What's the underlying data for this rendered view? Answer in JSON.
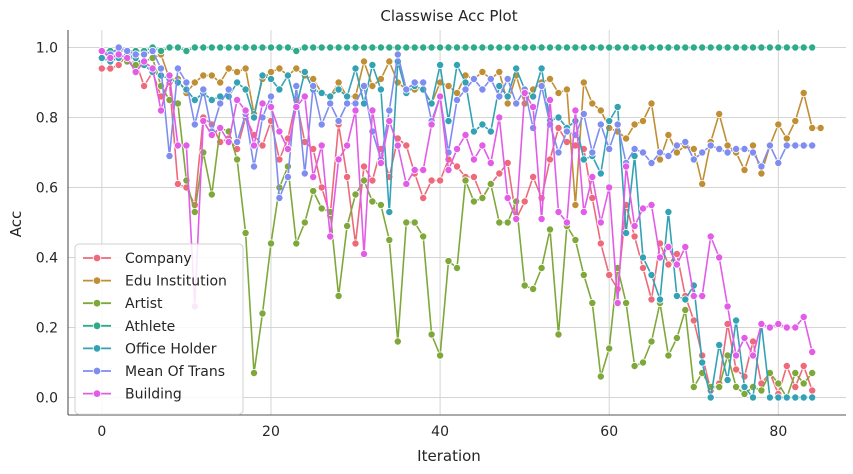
{
  "chart_data": {
    "type": "line",
    "title": "Classwise Acc Plot",
    "xlabel": "Iteration",
    "ylabel": "Acc",
    "xlim": [
      -4,
      88
    ],
    "ylim": [
      -0.05,
      1.05
    ],
    "x_ticks": [
      0,
      20,
      40,
      60,
      80
    ],
    "y_ticks": [
      0.0,
      0.2,
      0.4,
      0.6,
      0.8,
      1.0
    ],
    "x_tick_labels": [
      "0",
      "20",
      "40",
      "60",
      "80"
    ],
    "y_tick_labels": [
      "0.0",
      "0.2",
      "0.4",
      "0.6",
      "0.8",
      "1.0"
    ],
    "grid": true,
    "legend_position": "lower-left",
    "x_start": 0,
    "series": [
      {
        "name": "Company",
        "color": "#ee6a7a",
        "values": [
          0.94,
          0.94,
          0.95,
          0.98,
          0.96,
          0.89,
          0.93,
          0.86,
          0.9,
          0.61,
          0.6,
          0.55,
          0.8,
          0.78,
          0.73,
          0.74,
          0.71,
          0.8,
          0.75,
          0.72,
          0.79,
          0.68,
          0.74,
          0.85,
          0.73,
          0.71,
          0.6,
          0.52,
          0.78,
          0.63,
          0.44,
          0.66,
          0.62,
          0.71,
          0.63,
          0.74,
          0.72,
          0.64,
          0.57,
          0.62,
          0.62,
          0.68,
          0.66,
          0.63,
          0.63,
          0.57,
          0.61,
          0.64,
          0.67,
          0.51,
          0.56,
          0.63,
          0.57,
          0.68,
          0.77,
          0.73,
          0.72,
          0.71,
          0.57,
          0.44,
          0.35,
          0.31,
          0.55,
          0.46,
          0.37,
          0.28,
          0.44,
          0.38,
          0.41,
          0.29,
          0.22,
          0.12,
          0.02,
          0.04,
          0.21,
          0.08,
          0.06,
          0.16,
          0.04,
          0.07,
          0.01,
          0.09,
          0.03,
          0.09,
          0.02
        ]
      },
      {
        "name": "Edu Institution",
        "color": "#c08e34",
        "values": [
          0.97,
          0.97,
          0.97,
          0.96,
          0.94,
          0.96,
          0.97,
          0.98,
          0.91,
          0.91,
          0.87,
          0.9,
          0.92,
          0.92,
          0.9,
          0.94,
          0.93,
          0.94,
          0.81,
          0.91,
          0.93,
          0.94,
          0.92,
          0.94,
          0.92,
          0.91,
          0.87,
          0.86,
          0.9,
          0.86,
          0.86,
          0.96,
          0.89,
          0.91,
          0.96,
          0.9,
          0.88,
          0.88,
          0.88,
          0.84,
          0.9,
          0.89,
          0.87,
          0.92,
          0.91,
          0.93,
          0.91,
          0.93,
          0.84,
          0.92,
          0.84,
          0.88,
          0.9,
          0.91,
          0.87,
          0.88,
          0.55,
          0.9,
          0.84,
          0.82,
          0.77,
          0.76,
          0.74,
          0.78,
          0.79,
          0.84,
          0.68,
          0.75,
          0.7,
          0.72,
          0.71,
          0.61,
          0.73,
          0.81,
          0.72,
          0.7,
          0.65,
          0.72,
          0.64,
          0.72,
          0.78,
          0.74,
          0.79,
          0.87,
          0.77,
          0.77
        ]
      },
      {
        "name": "Artist",
        "color": "#7fa83a",
        "values": [
          0.99,
          0.98,
          0.97,
          0.96,
          0.95,
          0.96,
          0.97,
          0.89,
          0.85,
          0.84,
          0.62,
          0.53,
          0.7,
          0.58,
          0.77,
          0.76,
          0.68,
          0.47,
          0.07,
          0.24,
          0.44,
          0.6,
          0.66,
          0.44,
          0.5,
          0.59,
          0.54,
          0.53,
          0.29,
          0.49,
          0.58,
          0.62,
          0.56,
          0.55,
          0.45,
          0.16,
          0.5,
          0.5,
          0.46,
          0.18,
          0.12,
          0.39,
          0.37,
          0.62,
          0.56,
          0.57,
          0.61,
          0.5,
          0.5,
          0.56,
          0.32,
          0.31,
          0.37,
          0.48,
          0.18,
          0.49,
          0.45,
          0.35,
          0.27,
          0.06,
          0.14,
          0.37,
          0.27,
          0.09,
          0.1,
          0.16,
          0.27,
          0.12,
          0.17,
          0.25,
          0.03,
          0.07,
          0.03,
          0.03,
          0.12,
          0.03,
          0.01,
          0.03,
          0.02,
          0.07,
          0.04,
          0.0,
          0.07,
          0.04,
          0.07
        ]
      },
      {
        "name": "Athlete",
        "color": "#2fab8b",
        "values": [
          0.99,
          0.99,
          0.99,
          0.99,
          0.99,
          0.99,
          1.0,
          0.99,
          1.0,
          1.0,
          0.99,
          1.0,
          1.0,
          1.0,
          1.0,
          1.0,
          1.0,
          1.0,
          1.0,
          1.0,
          1.0,
          1.0,
          1.0,
          0.99,
          1.0,
          1.0,
          1.0,
          1.0,
          1.0,
          1.0,
          1.0,
          1.0,
          1.0,
          1.0,
          1.0,
          1.0,
          1.0,
          1.0,
          1.0,
          1.0,
          1.0,
          1.0,
          1.0,
          1.0,
          1.0,
          1.0,
          1.0,
          1.0,
          1.0,
          1.0,
          1.0,
          1.0,
          1.0,
          1.0,
          1.0,
          1.0,
          1.0,
          1.0,
          1.0,
          1.0,
          1.0,
          1.0,
          1.0,
          1.0,
          1.0,
          1.0,
          1.0,
          1.0,
          1.0,
          1.0,
          1.0,
          1.0,
          1.0,
          1.0,
          1.0,
          1.0,
          1.0,
          1.0,
          1.0,
          1.0,
          1.0,
          1.0,
          1.0,
          1.0,
          1.0
        ]
      },
      {
        "name": "Office Holder",
        "color": "#34a2b5",
        "values": [
          0.97,
          0.96,
          0.97,
          0.98,
          0.97,
          0.95,
          0.93,
          0.92,
          0.91,
          0.9,
          0.88,
          0.85,
          0.87,
          0.85,
          0.86,
          0.86,
          0.9,
          0.88,
          0.8,
          0.92,
          0.91,
          0.88,
          0.92,
          0.83,
          0.93,
          0.88,
          0.87,
          0.86,
          0.88,
          0.86,
          0.94,
          0.84,
          0.95,
          0.88,
          0.53,
          0.96,
          0.87,
          0.89,
          0.88,
          0.84,
          0.95,
          0.79,
          0.95,
          0.9,
          0.76,
          0.78,
          0.76,
          0.89,
          0.86,
          0.94,
          0.88,
          0.86,
          0.94,
          0.79,
          0.8,
          0.77,
          0.79,
          0.68,
          0.69,
          0.64,
          0.79,
          0.83,
          0.47,
          0.69,
          0.4,
          0.35,
          0.28,
          0.53,
          0.29,
          0.28,
          0.32,
          0.1,
          0.0,
          0.15,
          0.05,
          0.22,
          0.03,
          0.0,
          0.21,
          0.0,
          0.0,
          0.0,
          0.0,
          0.0,
          0.0
        ]
      },
      {
        "name": "Mean Of Trans",
        "color": "#7f8df0",
        "values": [
          0.99,
          0.98,
          1.0,
          0.99,
          0.98,
          0.98,
          0.99,
          0.94,
          0.69,
          0.94,
          0.9,
          0.78,
          0.88,
          0.76,
          0.84,
          0.88,
          0.73,
          0.81,
          0.66,
          0.8,
          0.86,
          0.57,
          0.63,
          0.89,
          0.64,
          0.89,
          0.78,
          0.84,
          0.79,
          0.84,
          0.84,
          0.89,
          0.76,
          0.68,
          0.82,
          0.98,
          0.88,
          0.9,
          0.9,
          0.79,
          0.86,
          0.7,
          0.85,
          0.88,
          0.91,
          0.88,
          0.91,
          0.86,
          0.91,
          0.84,
          0.88,
          0.77,
          0.89,
          0.78,
          0.7,
          0.76,
          0.75,
          0.81,
          0.7,
          0.78,
          0.71,
          0.78,
          0.67,
          0.71,
          0.7,
          0.67,
          0.7,
          0.69,
          0.72,
          0.73,
          0.68,
          0.7,
          0.72,
          0.71,
          0.7,
          0.71,
          0.71,
          0.7,
          0.66,
          0.72,
          0.67,
          0.72,
          0.72,
          0.72,
          0.72
        ]
      },
      {
        "name": "Building",
        "color": "#e25ce8",
        "values": [
          0.99,
          0.97,
          0.98,
          0.97,
          0.93,
          0.96,
          0.94,
          0.82,
          0.92,
          0.72,
          0.72,
          0.26,
          0.79,
          0.75,
          0.77,
          0.73,
          0.85,
          0.82,
          0.72,
          0.84,
          0.83,
          0.76,
          0.71,
          0.83,
          0.86,
          0.63,
          0.72,
          0.46,
          0.68,
          0.72,
          0.82,
          0.41,
          0.82,
          0.67,
          0.79,
          0.72,
          0.61,
          0.65,
          0.65,
          0.78,
          0.86,
          0.65,
          0.71,
          0.75,
          0.68,
          0.72,
          0.67,
          0.8,
          0.57,
          0.51,
          0.87,
          0.83,
          0.51,
          0.85,
          0.53,
          0.5,
          0.82,
          0.53,
          0.63,
          0.5,
          0.6,
          0.27,
          0.66,
          0.49,
          0.54,
          0.55,
          0.4,
          0.43,
          0.38,
          0.43,
          0.29,
          0.29,
          0.46,
          0.4,
          0.26,
          0.12,
          0.17,
          0.12,
          0.21,
          0.2,
          0.21,
          0.2,
          0.2,
          0.23,
          0.13
        ]
      }
    ]
  }
}
